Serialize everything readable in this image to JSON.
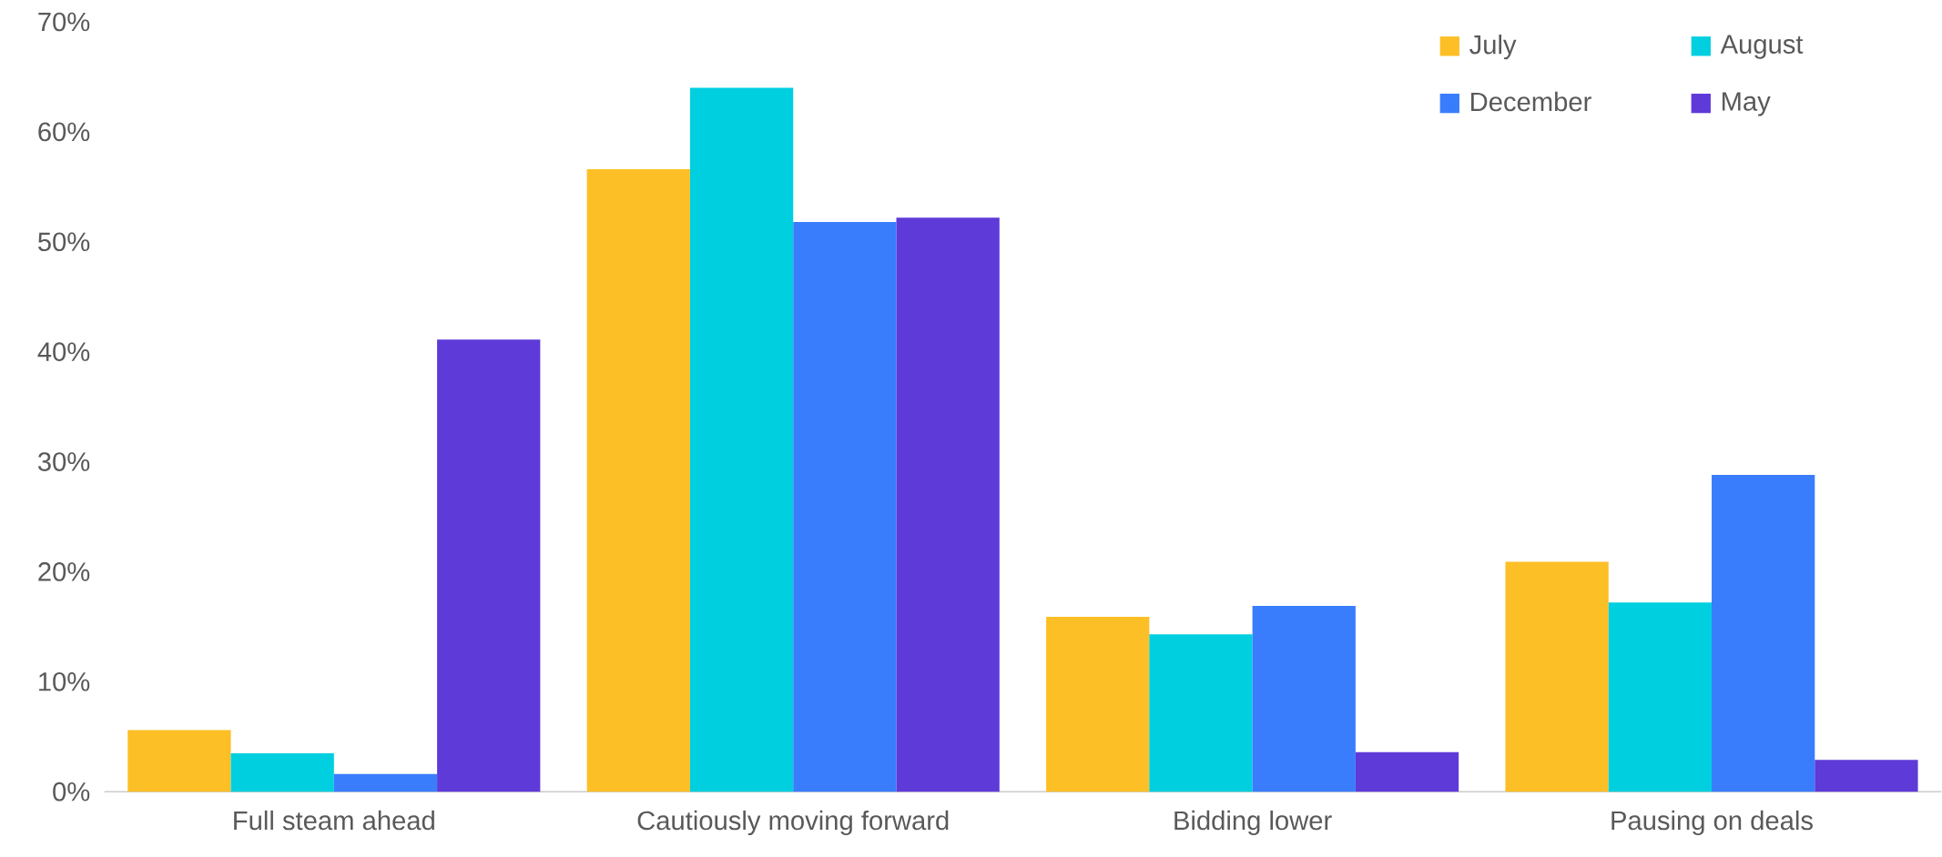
{
  "chart_data": {
    "type": "bar",
    "categories": [
      "Full steam ahead",
      "Cautiously moving forward",
      "Bidding lower",
      "Pausing on deals"
    ],
    "series": [
      {
        "name": "July",
        "color": "#fdbf26",
        "values": [
          5.6,
          56.6,
          15.9,
          20.9
        ]
      },
      {
        "name": "August",
        "color": "#00cfe0",
        "values": [
          3.5,
          64.0,
          14.3,
          17.2
        ]
      },
      {
        "name": "December",
        "color": "#3a7dfc",
        "values": [
          1.6,
          51.8,
          16.9,
          28.8
        ]
      },
      {
        "name": "May",
        "color": "#5e3ad9",
        "values": [
          41.1,
          52.2,
          3.6,
          2.9
        ]
      }
    ],
    "ylim": [
      0,
      70
    ],
    "yticks": [
      {
        "value": 0,
        "label": "0%"
      },
      {
        "value": 10,
        "label": "10%"
      },
      {
        "value": 20,
        "label": "20%"
      },
      {
        "value": 30,
        "label": "30%"
      },
      {
        "value": 40,
        "label": "40%"
      },
      {
        "value": 50,
        "label": "50%"
      },
      {
        "value": 60,
        "label": "60%"
      },
      {
        "value": 70,
        "label": "70%"
      }
    ],
    "legend": "top right"
  }
}
